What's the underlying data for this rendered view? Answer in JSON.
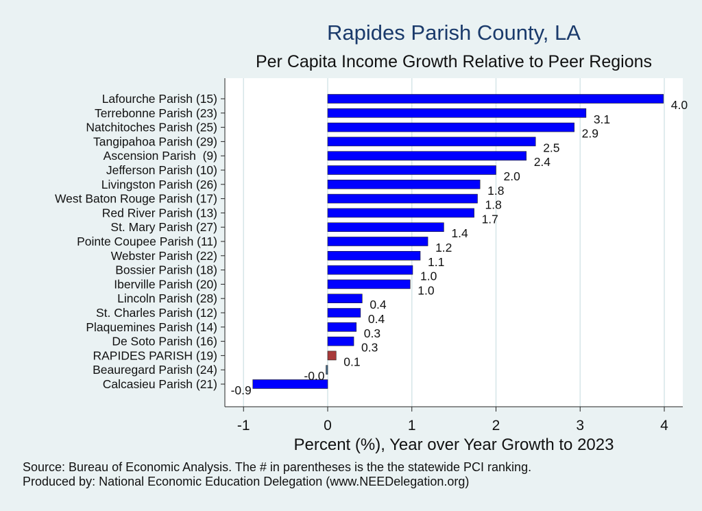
{
  "chart_data": {
    "type": "bar",
    "orientation": "horizontal",
    "title": "Rapides Parish County, LA",
    "subtitle": "Per Capita Income Growth Relative to Peer Regions",
    "xlabel": "Percent (%), Year over Year Growth to 2023",
    "ylabel": "",
    "xlim": [
      -1.2,
      4.2
    ],
    "xticks": [
      -1,
      0,
      1,
      2,
      3,
      4
    ],
    "grid": "vertical",
    "categories": [
      "Lafourche Parish (15)",
      "Terrebonne Parish (23)",
      "Natchitoches Parish (25)",
      "Tangipahoa Parish (29)",
      "Ascension Parish  (9)",
      "Jefferson Parish (10)",
      "Livingston Parish (26)",
      "West Baton Rouge Parish (17)",
      "Red River Parish (13)",
      "St. Mary Parish (27)",
      "Pointe Coupee Parish (11)",
      "Webster Parish (22)",
      "Bossier Parish (18)",
      "Iberville Parish (20)",
      "Lincoln Parish (28)",
      "St. Charles Parish (12)",
      "Plaquemines Parish (14)",
      "De Soto Parish (16)",
      "RAPIDES PARISH (19)",
      "Beauregard Parish (24)",
      "Calcasieu Parish (21)"
    ],
    "values": [
      3.99,
      3.07,
      2.93,
      2.47,
      2.36,
      2.0,
      1.81,
      1.78,
      1.74,
      1.38,
      1.19,
      1.1,
      1.01,
      0.98,
      0.41,
      0.39,
      0.34,
      0.31,
      0.1,
      -0.02,
      -0.89
    ],
    "value_labels": [
      "4.0",
      "3.1",
      "2.9",
      "2.5",
      "2.4",
      "2.0",
      "1.8",
      "1.8",
      "1.7",
      "1.4",
      "1.2",
      "1.1",
      "1.0",
      "1.0",
      "0.4",
      "0.4",
      "0.3",
      "0.3",
      "0.1",
      "-0.0",
      "-0.9"
    ],
    "highlight_category": "RAPIDES PARISH (19)",
    "colors": {
      "bar": "#0000ff",
      "highlight": "#a83a3a",
      "negative_small": "#4a6f8f",
      "grid": "#d6e6e8",
      "background": "#eaf2f3",
      "plot_background": "#ffffff"
    }
  },
  "footer": {
    "source": "Source: Bureau of Economic Analysis. The # in parentheses is the the statewide PCI ranking.",
    "produced_by": "Produced by: National Economic Education Delegation (www.NEEDelegation.org)"
  }
}
